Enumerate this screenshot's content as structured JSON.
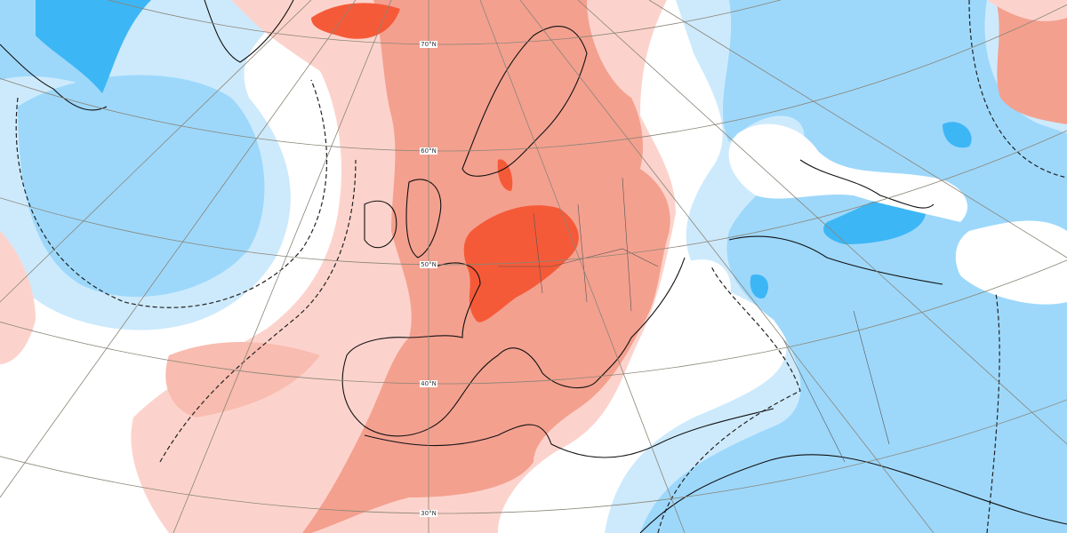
{
  "latitude_labels": [
    "70°N",
    "60°N",
    "50°N",
    "40°N",
    "30°N"
  ]
}
